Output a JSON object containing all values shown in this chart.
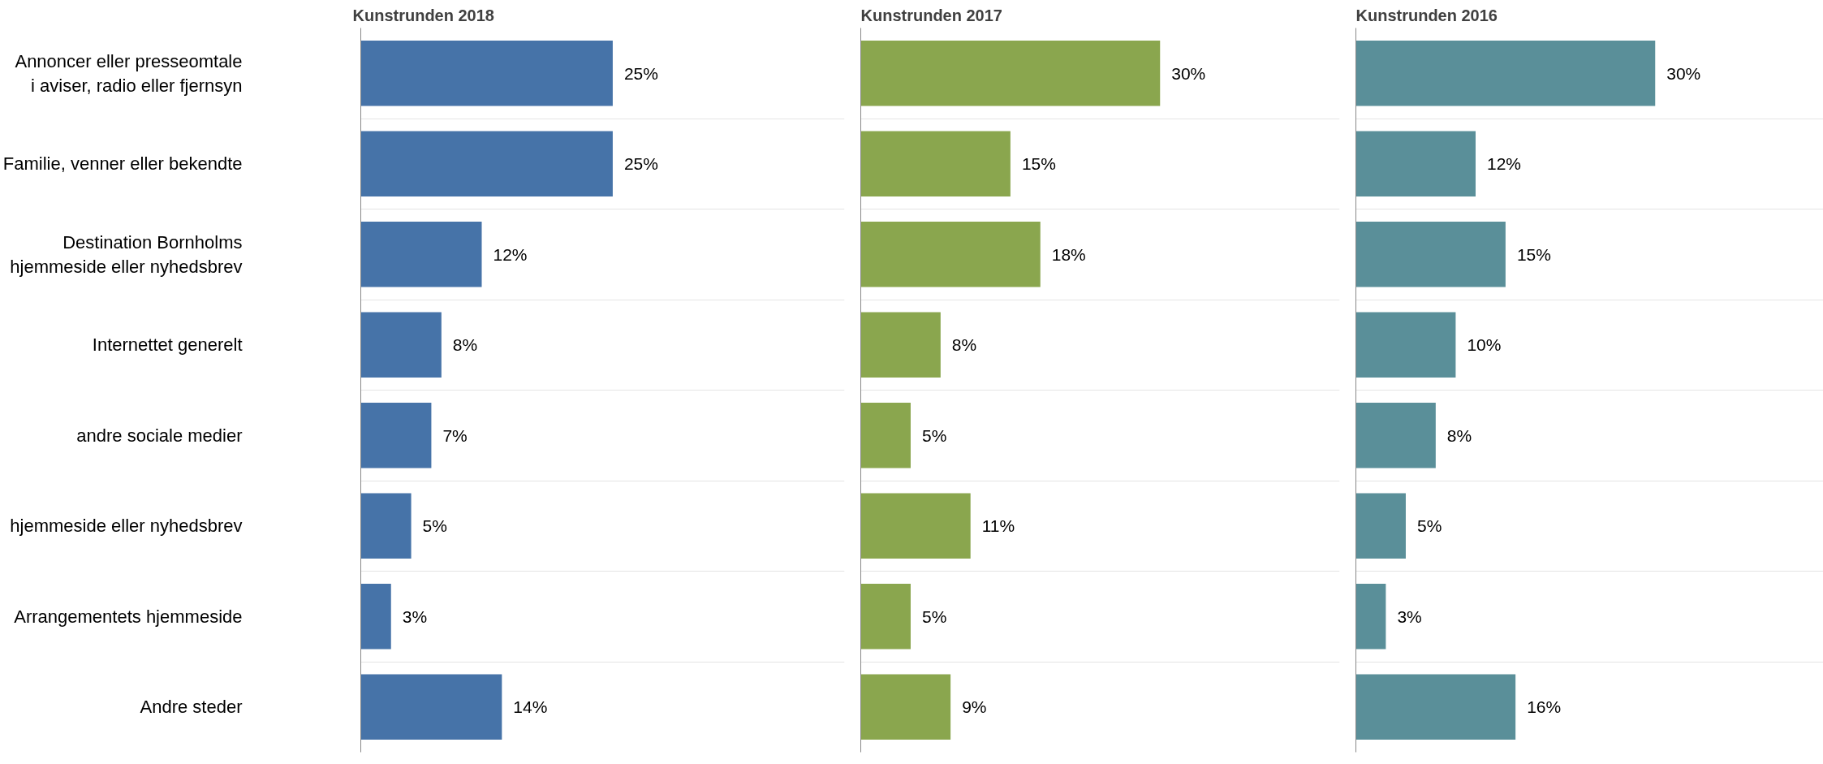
{
  "chart_data": [
    {
      "type": "bar",
      "orientation": "horizontal",
      "title": "Kunstrunden 2018",
      "categories": [
        "Annoncer eller presseomtale\ni aviser, radio eller fjernsyn",
        "Familie, venner eller bekendte",
        "Destination Bornholms\nhjemmeside eller nyhedsbrev",
        "Internettet generelt",
        "andre sociale medier",
        "hjemmeside eller nyhedsbrev",
        "Arrangementets hjemmeside",
        "Andre steder"
      ],
      "values": [
        25,
        25,
        12,
        8,
        7,
        5,
        3,
        14
      ],
      "color": "#4673a8",
      "xlim": [
        0,
        48
      ],
      "data_labels": true,
      "grid": "y",
      "tick_labels": "y",
      "value_labels": [
        "25%",
        "25%",
        "12%",
        "8%",
        "7%",
        "5%",
        "3%",
        "14%"
      ]
    },
    {
      "type": "bar",
      "orientation": "horizontal",
      "title": "Kunstrunden 2017",
      "categories": [
        null,
        null,
        null,
        null,
        null,
        null,
        null,
        null
      ],
      "values": [
        30,
        15,
        18,
        8,
        5,
        11,
        5,
        9
      ],
      "color": "#8aa64e",
      "xlim": [
        0,
        48
      ],
      "data_labels": true,
      "grid": "y",
      "tick_labels": false,
      "value_labels": [
        "30%",
        "15%",
        "18%",
        "8%",
        "5%",
        "11%",
        "5%",
        "9%"
      ]
    },
    {
      "type": "bar",
      "orientation": "horizontal",
      "title": "Kunstrunden 2016",
      "categories": [
        null,
        null,
        null,
        null,
        null,
        null,
        null,
        null
      ],
      "values": [
        30,
        12,
        15,
        10,
        8,
        5,
        3,
        16
      ],
      "color": "#5a8f99",
      "xlim": [
        0,
        48
      ],
      "data_labels": true,
      "grid": "y",
      "tick_labels": false,
      "value_labels": [
        "30%",
        "12%",
        "15%",
        "10%",
        "8%",
        "5%",
        "3%",
        "16%"
      ]
    }
  ]
}
